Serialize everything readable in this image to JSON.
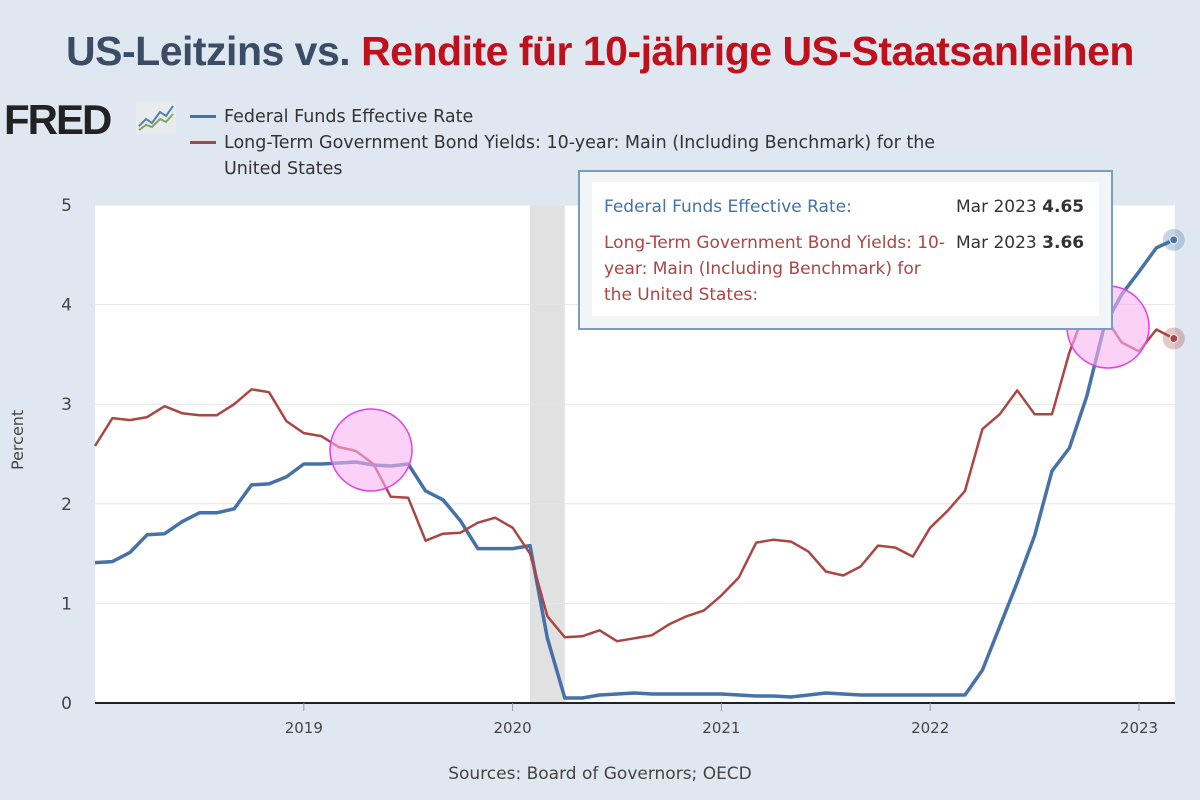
{
  "title": {
    "part1": "US-Leitzins vs.",
    "part2": "Rendite für 10-jährige US-Staatsanleihen",
    "color1": "#3b4d66",
    "color2": "#c0101b"
  },
  "logo": "FRED",
  "tooltip": {
    "series1_label": "Federal Funds Effective Rate:",
    "series1_date": "Mar 2023",
    "series1_value": "4.65",
    "series2_label": "Long-Term Government Bond Yields: 10-year: Main (Including Benchmark) for the United States:",
    "series2_date": "Mar 2023",
    "series2_value": "3.66"
  },
  "source": "Sources: Board of Governors; OECD",
  "chart_data": {
    "type": "line",
    "ylabel": "Percent",
    "ylim": [
      0,
      5
    ],
    "yticks": [
      "0",
      "1",
      "2",
      "3",
      "4",
      "5"
    ],
    "xticks": [
      "2019",
      "2020",
      "2021",
      "2022",
      "2023"
    ],
    "x_start": "2018-01",
    "x_end": "2023-03",
    "frequency": "monthly",
    "grid": true,
    "legend": "top-left",
    "recession_shading": [
      "2020-02",
      "2020-04"
    ],
    "series": [
      {
        "name": "Federal Funds Effective Rate",
        "color": "#4572a7",
        "values": [
          1.41,
          1.42,
          1.51,
          1.69,
          1.7,
          1.82,
          1.91,
          1.91,
          1.95,
          2.19,
          2.2,
          2.27,
          2.4,
          2.4,
          2.41,
          2.42,
          2.39,
          2.38,
          2.4,
          2.13,
          2.04,
          1.83,
          1.55,
          1.55,
          1.55,
          1.58,
          0.65,
          0.05,
          0.05,
          0.08,
          0.09,
          0.1,
          0.09,
          0.09,
          0.09,
          0.09,
          0.09,
          0.08,
          0.07,
          0.07,
          0.06,
          0.08,
          0.1,
          0.09,
          0.08,
          0.08,
          0.08,
          0.08,
          0.08,
          0.08,
          0.08,
          0.33,
          0.77,
          1.21,
          1.68,
          2.33,
          2.56,
          3.08,
          3.78,
          4.1,
          4.33,
          4.57,
          4.65
        ]
      },
      {
        "name": "Long-Term Government Bond Yields: 10-year: Main (Including Benchmark) for the United States",
        "color": "#aa4643",
        "values": [
          2.58,
          2.86,
          2.84,
          2.87,
          2.98,
          2.91,
          2.89,
          2.89,
          3.0,
          3.15,
          3.12,
          2.83,
          2.71,
          2.68,
          2.57,
          2.53,
          2.4,
          2.07,
          2.06,
          1.63,
          1.7,
          1.71,
          1.81,
          1.86,
          1.76,
          1.5,
          0.87,
          0.66,
          0.67,
          0.73,
          0.62,
          0.65,
          0.68,
          0.79,
          0.87,
          0.93,
          1.08,
          1.26,
          1.61,
          1.64,
          1.62,
          1.52,
          1.32,
          1.28,
          1.37,
          1.58,
          1.56,
          1.47,
          1.76,
          1.93,
          2.13,
          2.75,
          2.9,
          3.14,
          2.9,
          2.9,
          3.52,
          3.98,
          3.89,
          3.62,
          3.53,
          3.75,
          3.66
        ]
      }
    ],
    "highlight_color": "#f9b3f3"
  }
}
